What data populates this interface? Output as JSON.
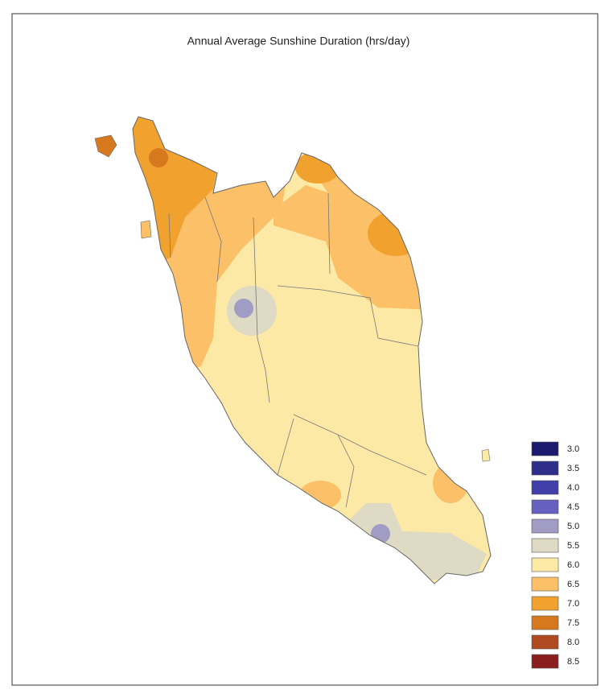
{
  "title": "Annual Average Sunshine Duration (hrs/day)",
  "legend": [
    {
      "label": "3.0",
      "color": "#1c1a6e"
    },
    {
      "label": "3.5",
      "color": "#2e2d8a"
    },
    {
      "label": "4.0",
      "color": "#4040a8"
    },
    {
      "label": "4.5",
      "color": "#6661c0"
    },
    {
      "label": "5.0",
      "color": "#a09cc4"
    },
    {
      "label": "5.5",
      "color": "#dedac4"
    },
    {
      "label": "6.0",
      "color": "#fde9a6"
    },
    {
      "label": "6.5",
      "color": "#fbc068"
    },
    {
      "label": "7.0",
      "color": "#f0a12e"
    },
    {
      "label": "7.5",
      "color": "#d6781e"
    },
    {
      "label": "8.0",
      "color": "#b04a22"
    },
    {
      "label": "8.5",
      "color": "#8a1e1e"
    }
  ]
}
